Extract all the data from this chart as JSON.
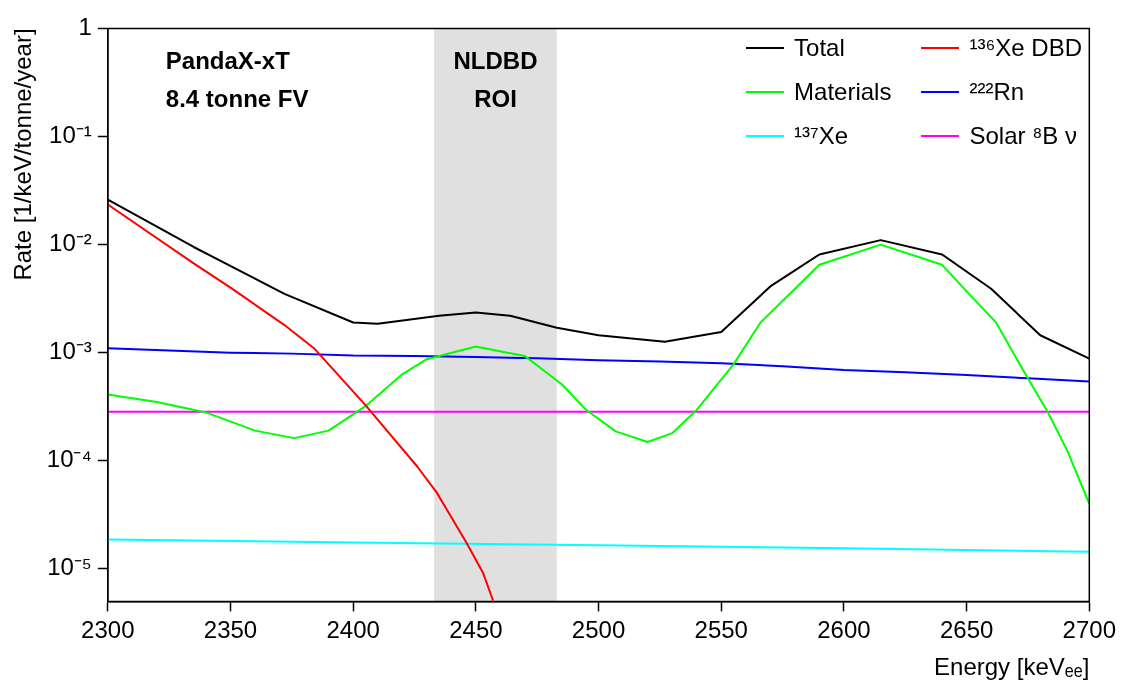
{
  "chart_data": {
    "type": "line",
    "xlabel": "Energy [keVₑₑ]",
    "ylabel": "Rate [1/keV/tonne/year]",
    "annotations": [
      "PandaX-xT",
      "8.4 tonne FV"
    ],
    "xlim": [
      2300,
      2700
    ],
    "xticks": [
      2300,
      2350,
      2400,
      2450,
      2500,
      2550,
      2600,
      2650,
      2700
    ],
    "ylim": [
      5e-06,
      1
    ],
    "yticks": [
      {
        "value": 1,
        "label": "1"
      },
      {
        "value": 0.1,
        "label": "10⁻¹"
      },
      {
        "value": 0.01,
        "label": "10⁻²"
      },
      {
        "value": 0.001,
        "label": "10⁻³"
      },
      {
        "value": 0.0001,
        "label": "10⁻⁴"
      },
      {
        "value": 1e-05,
        "label": "10⁻⁵"
      }
    ],
    "log": "y",
    "legend": "top right",
    "bands": [
      {
        "axis": "x",
        "from": 2433,
        "to": 2483,
        "label": "NLDBD ROI",
        "color": "#e0e0e0"
      }
    ],
    "series": [
      {
        "name": "Total",
        "color": "#000000",
        "x": [
          2300,
          2335,
          2372,
          2400,
          2410,
          2435,
          2450,
          2464,
          2483,
          2500,
          2527,
          2550,
          2570,
          2590,
          2615,
          2640,
          2660,
          2680,
          2700
        ],
        "values": [
          0.026,
          0.0095,
          0.0035,
          0.0019,
          0.00185,
          0.0022,
          0.00235,
          0.0022,
          0.0017,
          0.00145,
          0.00126,
          0.00155,
          0.0041,
          0.0081,
          0.011,
          0.0081,
          0.0039,
          0.00145,
          0.00088
        ]
      },
      {
        "name": "¹³⁶Xe DBD",
        "color": "#ff0000",
        "x": [
          2300,
          2335,
          2350,
          2372,
          2384,
          2405,
          2426,
          2434,
          2446,
          2453,
          2457
        ],
        "values": [
          0.0235,
          0.0067,
          0.004,
          0.0018,
          0.0011,
          0.000327,
          8.9e-05,
          5.1e-05,
          1.77e-05,
          9.1e-06,
          5.1e-06
        ]
      },
      {
        "name": "Materials",
        "color": "#00ff00",
        "x": [
          2300,
          2320,
          2340,
          2360,
          2376,
          2390,
          2405,
          2420,
          2430,
          2450,
          2470,
          2485,
          2495,
          2507,
          2520,
          2530,
          2540,
          2555,
          2566,
          2590,
          2615,
          2640,
          2652,
          2662,
          2674,
          2683,
          2691,
          2700
        ],
        "values": [
          0.00041,
          0.00035,
          0.00028,
          0.00019,
          0.000162,
          0.00019,
          0.00032,
          0.00063,
          0.00087,
          0.00114,
          0.00093,
          0.00051,
          0.000295,
          0.000187,
          0.000149,
          0.00018,
          0.000295,
          0.00078,
          0.0019,
          0.0065,
          0.01,
          0.0065,
          0.0033,
          0.0019,
          0.00063,
          0.000284,
          0.000124,
          4e-05
        ]
      },
      {
        "name": "²²²Rn",
        "color": "#0000ff",
        "x": [
          2300,
          2325,
          2350,
          2375,
          2400,
          2425,
          2450,
          2475,
          2500,
          2525,
          2550,
          2575,
          2600,
          2625,
          2650,
          2675,
          2700
        ],
        "values": [
          0.0011,
          0.00105,
          0.001,
          0.00098,
          0.00094,
          0.00093,
          0.00091,
          0.00089,
          0.00085,
          0.00083,
          0.0008,
          0.00075,
          0.00069,
          0.00066,
          0.00062,
          0.00058,
          0.00054
        ]
      },
      {
        "name": "¹³⁷Xe",
        "color": "#00ffff",
        "x": [
          2300,
          2400,
          2500,
          2600,
          2700
        ],
        "values": [
          1.87e-05,
          1.75e-05,
          1.65e-05,
          1.55e-05,
          1.44e-05
        ]
      },
      {
        "name": "Solar ⁸B ν",
        "color": "#ff00ff",
        "x": [
          2300,
          2700
        ],
        "values": [
          0.000284,
          0.000284
        ]
      }
    ]
  }
}
